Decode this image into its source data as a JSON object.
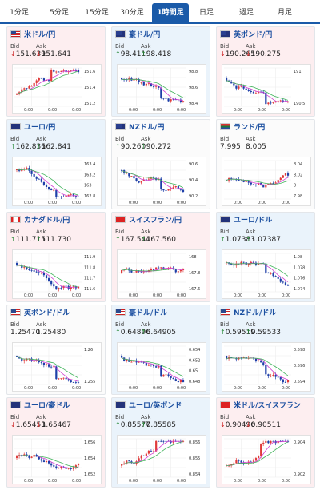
{
  "tabs": [
    {
      "label": "1分足",
      "active": false
    },
    {
      "label": "5分足",
      "active": false
    },
    {
      "label": "15分足",
      "active": false
    },
    {
      "label": "30分足",
      "active": false
    },
    {
      "label": "1時間足",
      "active": true
    },
    {
      "label": "日足",
      "active": false
    },
    {
      "label": "週足",
      "active": false
    },
    {
      "label": "月足",
      "active": false
    }
  ],
  "bid_label": "Bid",
  "ask_label": "Ask",
  "cards": [
    {
      "name": "米ドル/円",
      "flag": "us",
      "state": "up",
      "bid": "151.639",
      "ask": "151.641",
      "dir": "down",
      "yticks": [
        "151.6",
        "151.4",
        "151.2"
      ],
      "xticks": [
        "0:00",
        "0:00",
        "0:00"
      ],
      "trend": "up"
    },
    {
      "name": "豪ドル/円",
      "flag": "au",
      "state": "down",
      "bid": "98.411",
      "ask": "98.418",
      "dir": "up",
      "yticks": [
        "98.8",
        "98.6",
        "98.4"
      ],
      "xticks": [
        "0:00",
        "0:00",
        "0:00"
      ],
      "trend": "down"
    },
    {
      "name": "英ポンド/円",
      "flag": "gb",
      "state": "up",
      "bid": "190.265",
      "ask": "190.275",
      "dir": "down",
      "yticks": [
        "191",
        "190.5"
      ],
      "xticks": [
        "0:00",
        "0:00",
        "0:00"
      ],
      "trend": "down"
    },
    {
      "name": "ユーロ/円",
      "flag": "eu",
      "state": "down",
      "bid": "162.836",
      "ask": "162.841",
      "dir": "up",
      "yticks": [
        "163.4",
        "163.2",
        "163",
        "162.8"
      ],
      "xticks": [
        "0:00",
        "0:00",
        "0:00"
      ],
      "trend": "down"
    },
    {
      "name": "NZドル/円",
      "flag": "nz",
      "state": "flat",
      "bid": "90.260",
      "ask": "90.272",
      "dir": "up",
      "yticks": [
        "90.6",
        "90.4",
        "90.2"
      ],
      "xticks": [
        "0:00",
        "0:00",
        "0:00"
      ],
      "trend": "down"
    },
    {
      "name": "ランド/円",
      "flag": "za",
      "state": "flat",
      "bid": "7.995",
      "ask": "8.005",
      "dir": "none",
      "yticks": [
        "8.04",
        "8.02",
        "8",
        "7.98"
      ],
      "xticks": [
        "0:00",
        "0:00",
        "0:00"
      ],
      "trend": "flat"
    },
    {
      "name": "カナダドル/円",
      "flag": "ca",
      "state": "up",
      "bid": "111.715",
      "ask": "111.730",
      "dir": "up",
      "yticks": [
        "111.9",
        "111.8",
        "111.7",
        "111.6"
      ],
      "xticks": [
        "0:00",
        "0:00",
        "0:00"
      ],
      "trend": "down"
    },
    {
      "name": "スイスフラン/円",
      "flag": "ch",
      "state": "up",
      "bid": "167.544",
      "ask": "167.560",
      "dir": "up",
      "yticks": [
        "168",
        "167.8",
        "167.6"
      ],
      "xticks": [
        "0:00",
        "0:00",
        "0:00"
      ],
      "trend": "flat"
    },
    {
      "name": "ユーロ/ドル",
      "flag": "eu",
      "state": "down",
      "bid": "1.07383",
      "ask": "1.07387",
      "dir": "up",
      "yticks": [
        "1.08",
        "1.078",
        "1.076",
        "1.074"
      ],
      "xticks": [
        "0:00",
        "0:00",
        "0:00"
      ],
      "trend": "down"
    },
    {
      "name": "英ポンド/ドル",
      "flag": "us",
      "state": "flat",
      "bid": "1.25470",
      "ask": "1.25480",
      "dir": "none",
      "yticks": [
        "1.26",
        "1.255"
      ],
      "xticks": [
        "0:00",
        "0:00",
        "0:00"
      ],
      "trend": "down"
    },
    {
      "name": "豪ドル/ドル",
      "flag": "us",
      "state": "down",
      "bid": "0.64896",
      "ask": "0.64905",
      "dir": "up",
      "yticks": [
        "0.654",
        "0.652",
        "0.65",
        "0.648"
      ],
      "xticks": [
        "0:00",
        "0:00",
        "0:00"
      ],
      "trend": "down"
    },
    {
      "name": "NZドル/ドル",
      "flag": "us",
      "state": "down",
      "bid": "0.59519",
      "ask": "0.59533",
      "dir": "up",
      "yticks": [
        "0.598",
        "0.596",
        "0.594"
      ],
      "xticks": [
        "0:00",
        "0:00",
        "0:00"
      ],
      "trend": "down"
    },
    {
      "name": "ユーロ/豪ドル",
      "flag": "eu",
      "state": "up",
      "bid": "1.65453",
      "ask": "1.65467",
      "dir": "down",
      "yticks": [
        "1.656",
        "1.654",
        "1.652"
      ],
      "xticks": [
        "0:00",
        "0:00",
        "0:00"
      ],
      "trend": "flat"
    },
    {
      "name": "ユーロ/英ポンド",
      "flag": "eu",
      "state": "down",
      "bid": "0.85577",
      "ask": "0.85585",
      "dir": "up",
      "yticks": [
        "0.856",
        "0.855",
        "0.854"
      ],
      "xticks": [
        "0:00",
        "0:00",
        "0:00"
      ],
      "trend": "up"
    },
    {
      "name": "米ドル/スイスフラン",
      "flag": "ch",
      "state": "up",
      "bid": "0.90496",
      "ask": "0.90511",
      "dir": "down",
      "yticks": [
        "0.904",
        "0.902"
      ],
      "xticks": [
        "0:00",
        "0:00",
        "0:00"
      ],
      "trend": "up"
    }
  ]
}
